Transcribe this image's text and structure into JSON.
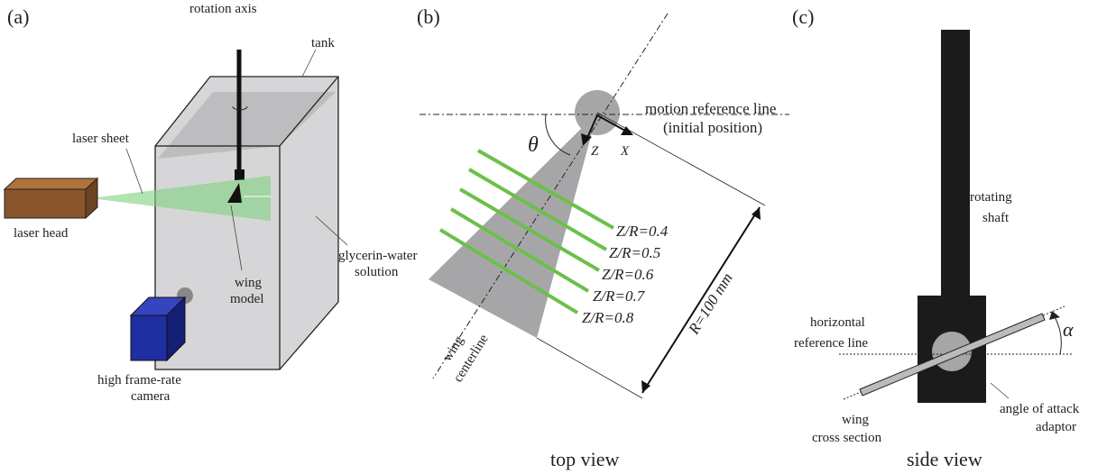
{
  "panel_a": {
    "tag": "(a)",
    "rotation_axis": "rotation axis",
    "tank": "tank",
    "laser_sheet": "laser sheet",
    "laser_head": "laser head",
    "solution": [
      "glycerin-water",
      "solution"
    ],
    "wing_model": [
      "wing",
      "model"
    ],
    "camera": [
      "high frame-rate",
      "camera"
    ]
  },
  "panel_b": {
    "tag": "(b)",
    "reference_line": [
      "motion reference line",
      "(initial position)"
    ],
    "theta": "θ",
    "z_axis": "Z",
    "x_axis": "X",
    "stations": [
      "Z/R=0.4",
      "Z/R=0.5",
      "Z/R=0.6",
      "Z/R=0.7",
      "Z/R=0.8"
    ],
    "radius": "R=100 mm",
    "centerline": [
      "wing",
      "centerline"
    ],
    "caption": "top view"
  },
  "panel_c": {
    "tag": "(c)",
    "shaft": [
      "rotating",
      "shaft"
    ],
    "reference_line": [
      "horizontal",
      "reference line"
    ],
    "alpha": "α",
    "wing_section": [
      "wing",
      "cross section"
    ],
    "adaptor": [
      "angle of attack",
      "adaptor"
    ],
    "caption": "side view"
  }
}
